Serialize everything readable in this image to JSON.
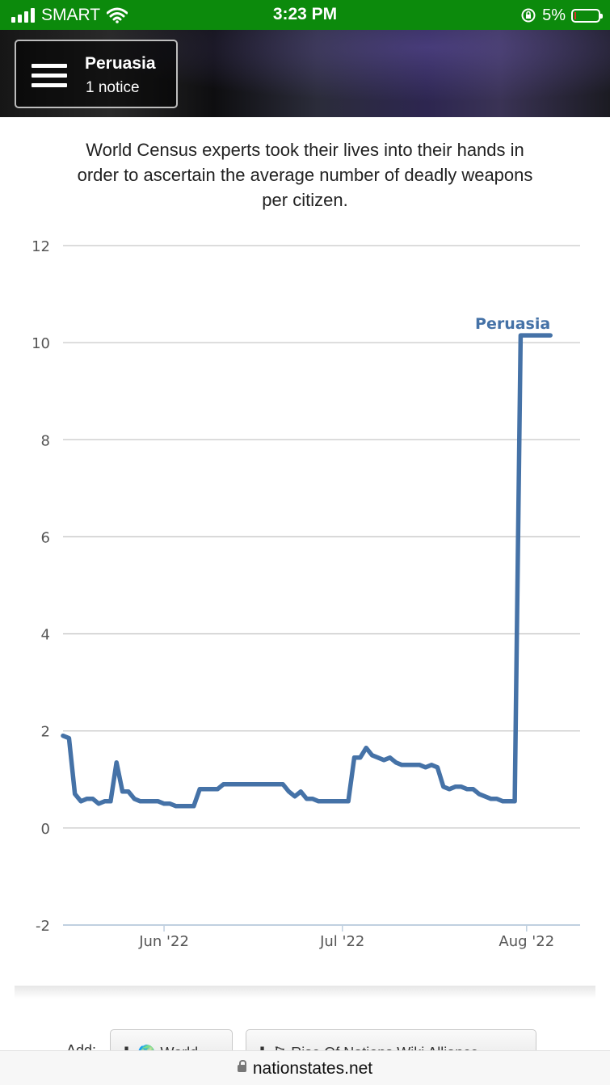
{
  "status_bar": {
    "carrier": "SMART",
    "time": "3:23 PM",
    "battery": "5%",
    "battery_level": 0.05,
    "icons": [
      "signal-icon",
      "wifi-icon",
      "orientation-lock-icon",
      "battery-icon"
    ]
  },
  "header": {
    "menu_icon": "hamburger-icon",
    "nation_name": "Peruasia",
    "notice": "1 notice"
  },
  "description": "World Census experts took their lives into their hands in order to ascertain the average number of deadly weapons per citizen.",
  "chart_data": {
    "type": "line",
    "title": "",
    "xlabel": "",
    "ylabel": "",
    "ylim": [
      -2,
      12
    ],
    "yticks": [
      -2,
      0,
      2,
      4,
      6,
      8,
      10,
      12
    ],
    "xticks": [
      "Jun '22",
      "Jul '22",
      "Aug '22"
    ],
    "xtick_dates": [
      "2022-06-01",
      "2022-07-01",
      "2022-08-01"
    ],
    "xlim": [
      "2022-05-15",
      "2022-08-10"
    ],
    "grid": true,
    "legend": "none",
    "line_color": "#4572a7",
    "series": [
      {
        "name": "Peruasia",
        "x": [
          "2022-05-15",
          "2022-05-16",
          "2022-05-17",
          "2022-05-18",
          "2022-05-19",
          "2022-05-20",
          "2022-05-21",
          "2022-05-22",
          "2022-05-23",
          "2022-05-24",
          "2022-05-25",
          "2022-05-26",
          "2022-05-27",
          "2022-05-28",
          "2022-05-29",
          "2022-05-30",
          "2022-05-31",
          "2022-06-01",
          "2022-06-02",
          "2022-06-03",
          "2022-06-04",
          "2022-06-05",
          "2022-06-06",
          "2022-06-07",
          "2022-06-08",
          "2022-06-09",
          "2022-06-10",
          "2022-06-11",
          "2022-06-12",
          "2022-06-13",
          "2022-06-14",
          "2022-06-15",
          "2022-06-16",
          "2022-06-17",
          "2022-06-18",
          "2022-06-19",
          "2022-06-20",
          "2022-06-21",
          "2022-06-22",
          "2022-06-23",
          "2022-06-24",
          "2022-06-25",
          "2022-06-26",
          "2022-06-27",
          "2022-06-28",
          "2022-06-29",
          "2022-06-30",
          "2022-07-01",
          "2022-07-02",
          "2022-07-03",
          "2022-07-04",
          "2022-07-05",
          "2022-07-06",
          "2022-07-07",
          "2022-07-08",
          "2022-07-09",
          "2022-07-10",
          "2022-07-11",
          "2022-07-12",
          "2022-07-13",
          "2022-07-14",
          "2022-07-15",
          "2022-07-16",
          "2022-07-17",
          "2022-07-18",
          "2022-07-19",
          "2022-07-20",
          "2022-07-21",
          "2022-07-22",
          "2022-07-23",
          "2022-07-24",
          "2022-07-25",
          "2022-07-26",
          "2022-07-27",
          "2022-07-28",
          "2022-07-29",
          "2022-07-30",
          "2022-07-31",
          "2022-08-01",
          "2022-08-02",
          "2022-08-03",
          "2022-08-04",
          "2022-08-05"
        ],
        "y": [
          1.9,
          1.85,
          0.7,
          0.55,
          0.6,
          0.6,
          0.5,
          0.55,
          0.55,
          1.35,
          0.75,
          0.75,
          0.6,
          0.55,
          0.55,
          0.55,
          0.55,
          0.5,
          0.5,
          0.45,
          0.45,
          0.45,
          0.45,
          0.8,
          0.8,
          0.8,
          0.8,
          0.9,
          0.9,
          0.9,
          0.9,
          0.9,
          0.9,
          0.9,
          0.9,
          0.9,
          0.9,
          0.9,
          0.75,
          0.65,
          0.75,
          0.6,
          0.6,
          0.55,
          0.55,
          0.55,
          0.55,
          0.55,
          0.55,
          1.45,
          1.45,
          1.65,
          1.5,
          1.45,
          1.4,
          1.45,
          1.35,
          1.3,
          1.3,
          1.3,
          1.3,
          1.25,
          1.3,
          1.25,
          0.85,
          0.8,
          0.85,
          0.85,
          0.8,
          0.8,
          0.7,
          0.65,
          0.6,
          0.6,
          0.55,
          0.55,
          0.55,
          10.15,
          10.15,
          10.15,
          10.15,
          10.15,
          10.15
        ],
        "end_label": "Peruasia"
      }
    ]
  },
  "add_row": {
    "label": "Add:",
    "buttons": [
      {
        "label": "World",
        "icons": [
          "plus-icon",
          "globe-icon"
        ]
      },
      {
        "label": "Rise Of Nations Wiki Alliance",
        "icons": [
          "plus-icon",
          "flag-icon"
        ]
      }
    ]
  },
  "url_bar": {
    "url": "nationstates.net",
    "icon": "lock-icon"
  }
}
